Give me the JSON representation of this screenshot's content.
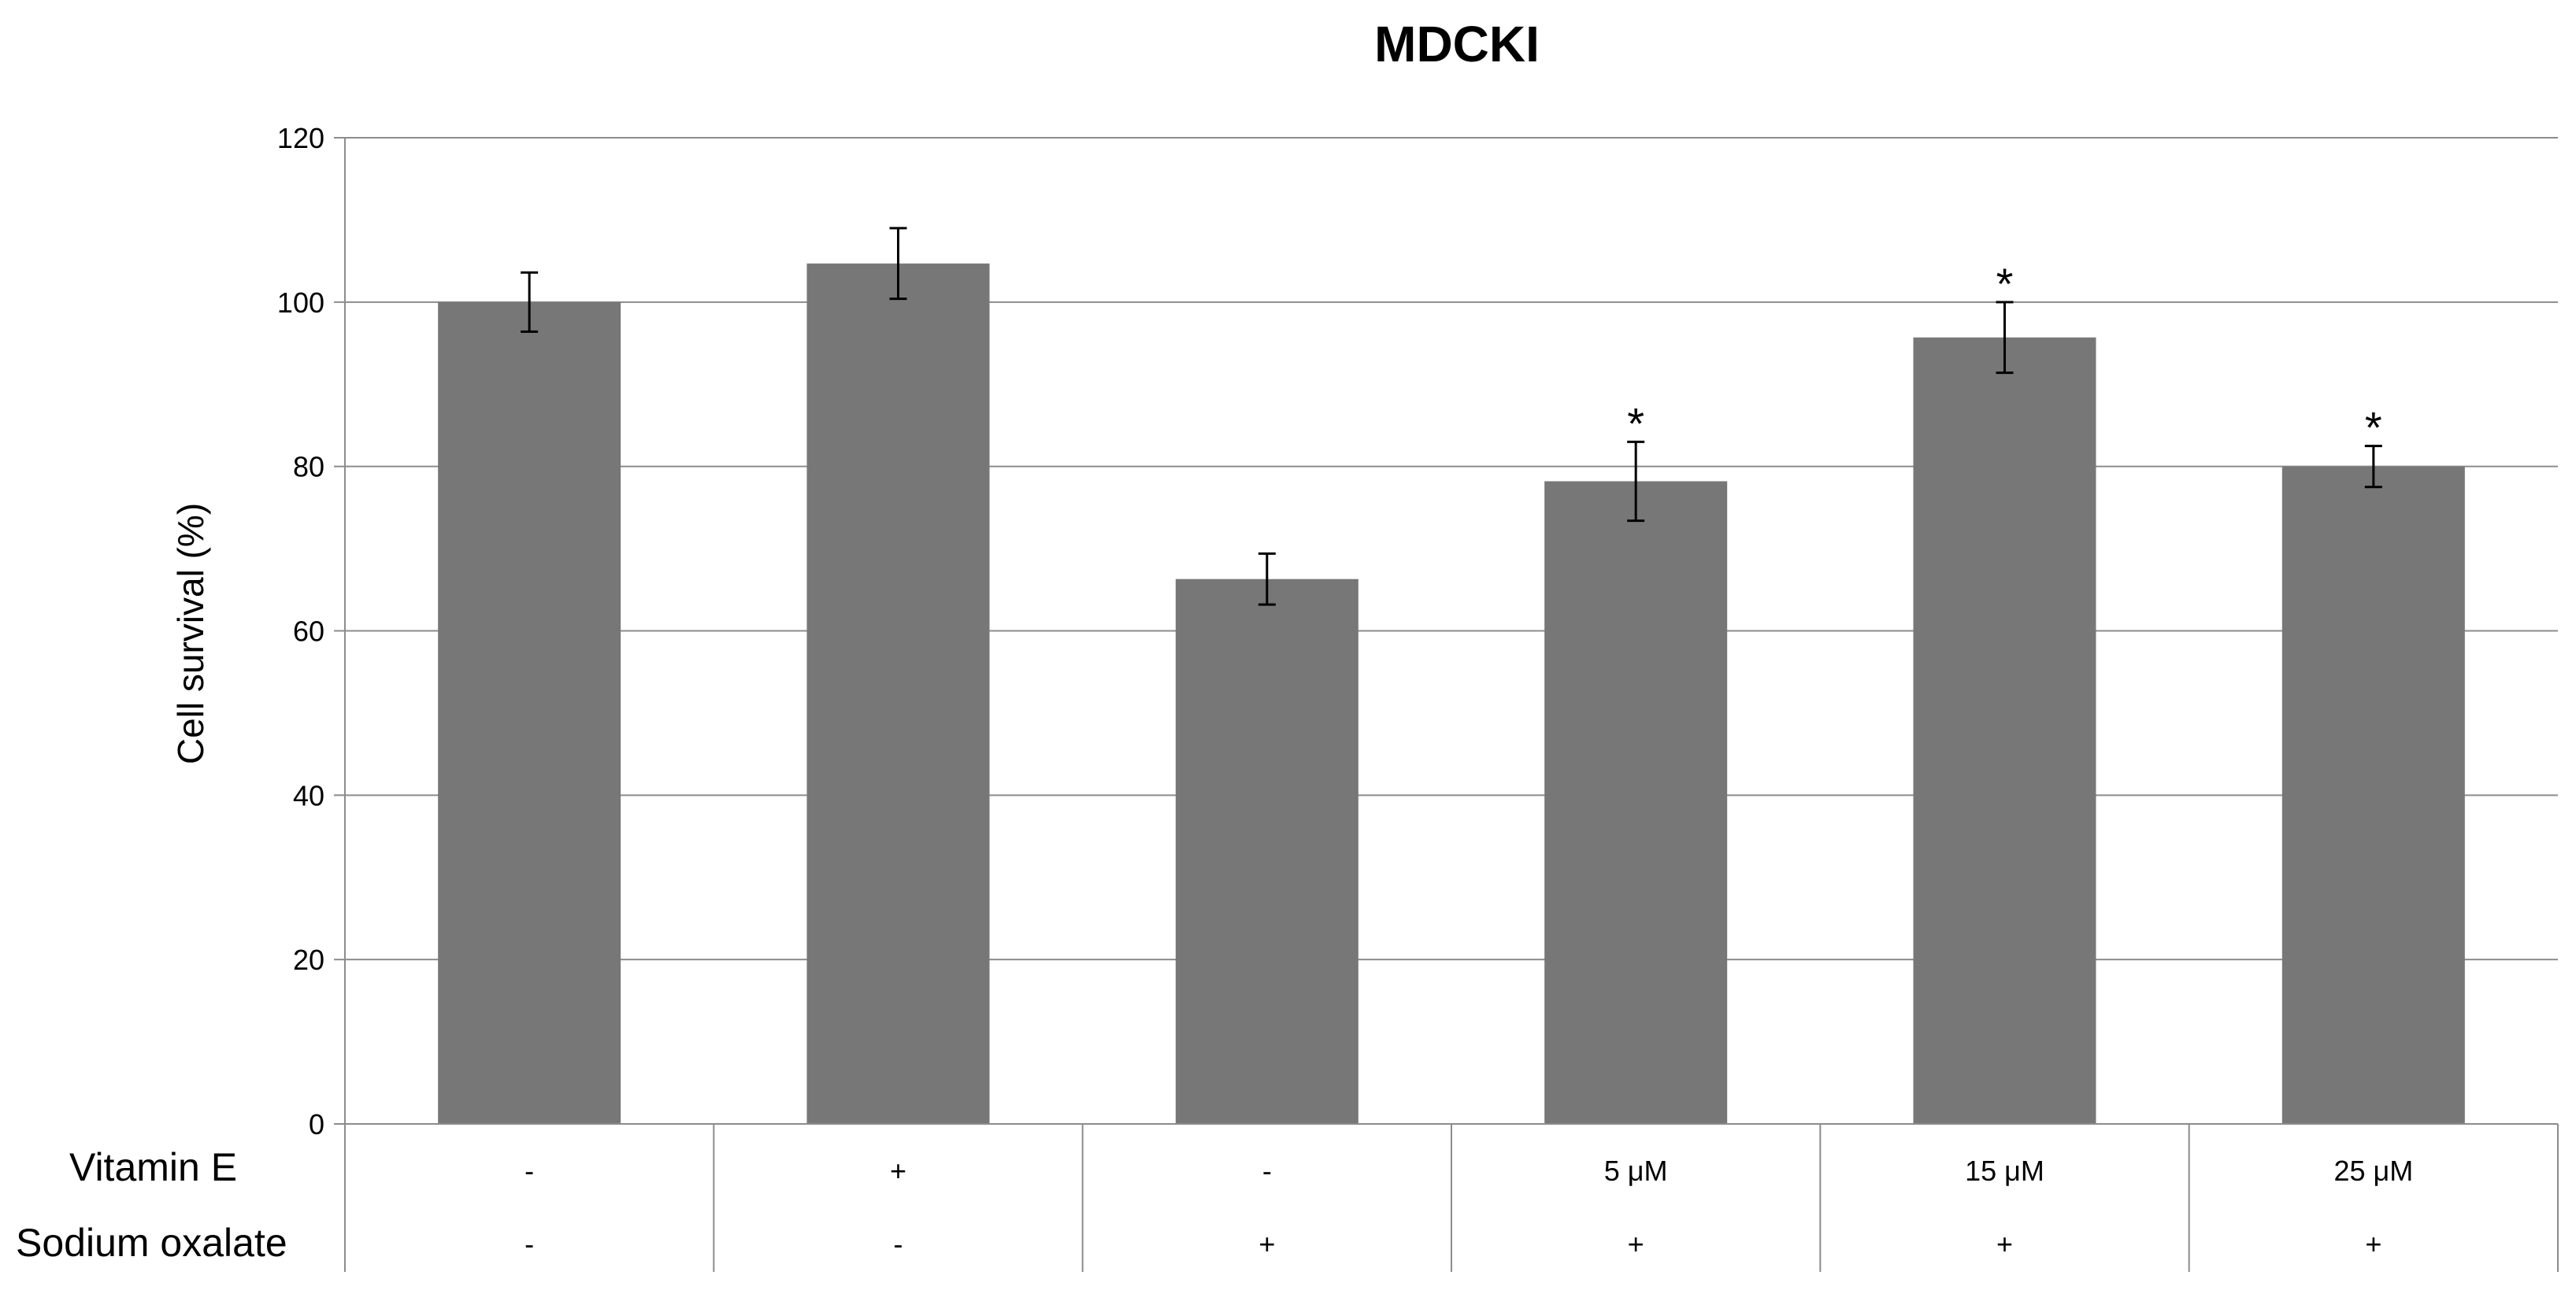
{
  "chart_data": {
    "type": "bar",
    "title": "MDCKI",
    "ylabel": "Cell survival (%)",
    "xlabel": "",
    "ylim": [
      0,
      120
    ],
    "yticks": [
      0,
      20,
      40,
      60,
      80,
      100,
      120
    ],
    "grid": true,
    "legend": "none",
    "bar_color": "#777777",
    "values": [
      100,
      104.7,
      66.3,
      78.2,
      95.7,
      80.0
    ],
    "error": [
      3.6,
      4.3,
      3.1,
      4.8,
      4.3,
      2.5
    ],
    "significance": [
      "",
      "",
      "",
      "*",
      "*",
      "*"
    ],
    "row_labels": [
      "Vitamin E",
      "Sodium oxalate"
    ],
    "table": [
      [
        "-",
        "+",
        "-",
        "5 μM",
        "15 μM",
        "25 μM"
      ],
      [
        "-",
        "-",
        "+",
        "+",
        "+",
        "+"
      ]
    ]
  }
}
